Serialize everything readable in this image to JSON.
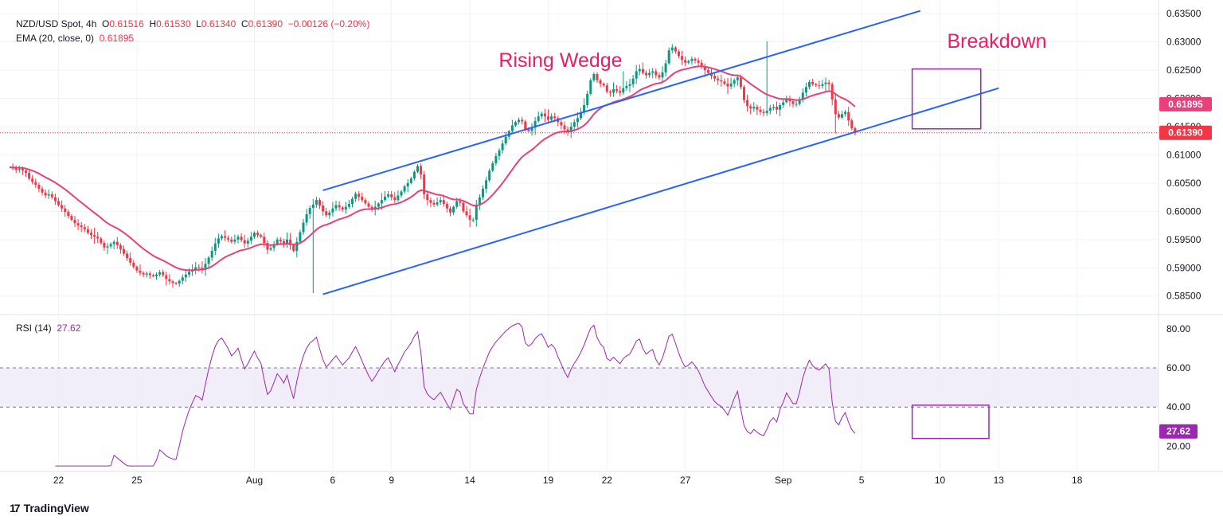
{
  "header": {
    "symbol": "NZD/USD Spot, 4h",
    "ohlc": {
      "o_label": "O",
      "o": "0.61516",
      "h_label": "H",
      "h": "0.61530",
      "l_label": "L",
      "l": "0.61340",
      "c_label": "C",
      "c": "0.61390",
      "change": "−0.00126 (−0.20%)"
    },
    "ema_label": "EMA (20, close, 0)",
    "ema_value": "0.61895",
    "rsi_label": "RSI (14)",
    "rsi_value": "27.62"
  },
  "footer": {
    "brand": "TradingView",
    "logo": "17"
  },
  "colors": {
    "up": "#089981",
    "down": "#f23645",
    "ema": "#e8407a",
    "channel": "#2962ff",
    "rsi": "#9c27b0",
    "annot": "#e91e63",
    "box": "#9c27b0",
    "band": "#ede7f6"
  },
  "chart_data": [
    {
      "type": "candlestick",
      "title": "NZD/USD Spot, 4h",
      "y_ticks": [
        "0.63500",
        "0.63000",
        "0.62500",
        "0.62000",
        "0.61500",
        "0.61000",
        "0.60500",
        "0.60000",
        "0.59500",
        "0.59000",
        "0.58500"
      ],
      "ylim": [
        0.582,
        0.636
      ],
      "x_ticks": [
        {
          "label": "22",
          "index": 15
        },
        {
          "label": "25",
          "index": 39
        },
        {
          "label": "Aug",
          "index": 75
        },
        {
          "label": "6",
          "index": 99
        },
        {
          "label": "9",
          "index": 117
        },
        {
          "label": "14",
          "index": 141
        },
        {
          "label": "19",
          "index": 165
        },
        {
          "label": "22",
          "index": 183
        },
        {
          "label": "27",
          "index": 207
        },
        {
          "label": "Sep",
          "index": 237
        },
        {
          "label": "5",
          "index": 261
        },
        {
          "label": "10",
          "index": 285
        },
        {
          "label": "13",
          "index": 303
        },
        {
          "label": "18",
          "index": 327
        }
      ],
      "last_price_label": "0.61390",
      "ema_price_label": "0.61895",
      "ema_period": 20,
      "closes": [
        0.6078,
        0.6076,
        0.6073,
        0.6075,
        0.6072,
        0.6068,
        0.6058,
        0.6052,
        0.6047,
        0.604,
        0.6033,
        0.6028,
        0.603,
        0.6025,
        0.6018,
        0.6011,
        0.6005,
        0.5999,
        0.5992,
        0.5985,
        0.5979,
        0.5975,
        0.5972,
        0.5968,
        0.5962,
        0.5958,
        0.5955,
        0.5952,
        0.5944,
        0.5936,
        0.5938,
        0.5942,
        0.5946,
        0.594,
        0.5933,
        0.5925,
        0.5917,
        0.5909,
        0.5902,
        0.5895,
        0.5891,
        0.5888,
        0.589,
        0.5887,
        0.5885,
        0.5888,
        0.5892,
        0.5887,
        0.588,
        0.5876,
        0.5873,
        0.5872,
        0.5877,
        0.5883,
        0.5888,
        0.5893,
        0.5897,
        0.5901,
        0.59,
        0.5898,
        0.5907,
        0.5918,
        0.593,
        0.5943,
        0.5952,
        0.5956,
        0.5953,
        0.595,
        0.5946,
        0.595,
        0.5955,
        0.5949,
        0.5943,
        0.5948,
        0.5955,
        0.5962,
        0.5958,
        0.5955,
        0.5944,
        0.5932,
        0.5935,
        0.5942,
        0.595,
        0.5947,
        0.5943,
        0.595,
        0.594,
        0.593,
        0.5946,
        0.5963,
        0.598,
        0.5995,
        0.6006,
        0.6012,
        0.602,
        0.601,
        0.6,
        0.5993,
        0.5998,
        0.6005,
        0.6011,
        0.6007,
        0.6003,
        0.6008,
        0.6013,
        0.6022,
        0.6031,
        0.6026,
        0.602,
        0.6014,
        0.6008,
        0.6003,
        0.6008,
        0.6014,
        0.602,
        0.6026,
        0.603,
        0.6025,
        0.602,
        0.6028,
        0.6035,
        0.6044,
        0.605,
        0.6058,
        0.607,
        0.608,
        0.6065,
        0.603,
        0.602,
        0.6015,
        0.6012,
        0.6016,
        0.602,
        0.6013,
        0.6005,
        0.5998,
        0.6008,
        0.6018,
        0.6015,
        0.6,
        0.5993,
        0.5985,
        0.5985,
        0.601,
        0.6025,
        0.604,
        0.6055,
        0.6072,
        0.6085,
        0.6098,
        0.6108,
        0.612,
        0.6132,
        0.6142,
        0.6152,
        0.6158,
        0.6162,
        0.6159,
        0.6145,
        0.6142,
        0.6148,
        0.616,
        0.6168,
        0.6173,
        0.6168,
        0.6162,
        0.6168,
        0.6165,
        0.6158,
        0.6152,
        0.6145,
        0.614,
        0.615,
        0.6158,
        0.6165,
        0.6175,
        0.6188,
        0.6208,
        0.6232,
        0.6243,
        0.6232,
        0.6226,
        0.6223,
        0.6212,
        0.621,
        0.6216,
        0.6213,
        0.621,
        0.6218,
        0.6222,
        0.6225,
        0.6235,
        0.6248,
        0.6252,
        0.6245,
        0.6241,
        0.6245,
        0.6248,
        0.6241,
        0.6237,
        0.6246,
        0.6262,
        0.6285,
        0.629,
        0.6283,
        0.6275,
        0.6268,
        0.6263,
        0.6266,
        0.627,
        0.6267,
        0.6263,
        0.6257,
        0.625,
        0.6245,
        0.624,
        0.6235,
        0.6232,
        0.623,
        0.6226,
        0.6221,
        0.6226,
        0.6232,
        0.6237,
        0.622,
        0.6197,
        0.6186,
        0.6182,
        0.6185,
        0.618,
        0.6176,
        0.6174,
        0.6178,
        0.6183,
        0.6185,
        0.618,
        0.6188,
        0.6193,
        0.62,
        0.6195,
        0.619,
        0.619,
        0.6198,
        0.621,
        0.622,
        0.6229,
        0.6225,
        0.6223,
        0.6222,
        0.6225,
        0.6228,
        0.6225,
        0.6198,
        0.6172,
        0.6166,
        0.6172,
        0.6176,
        0.6161,
        0.6147,
        0.6139
      ],
      "rsi": {
        "title": "RSI (14)",
        "period": 14,
        "y_ticks": [
          "80.00",
          "60.00",
          "40.00",
          "20.00"
        ],
        "ylim": [
          8,
          86
        ],
        "band": [
          40,
          60
        ],
        "last_label": "27.62"
      }
    }
  ],
  "annotations": {
    "rising_wedge": "Rising Wedge",
    "breakdown": "Breakdown"
  }
}
